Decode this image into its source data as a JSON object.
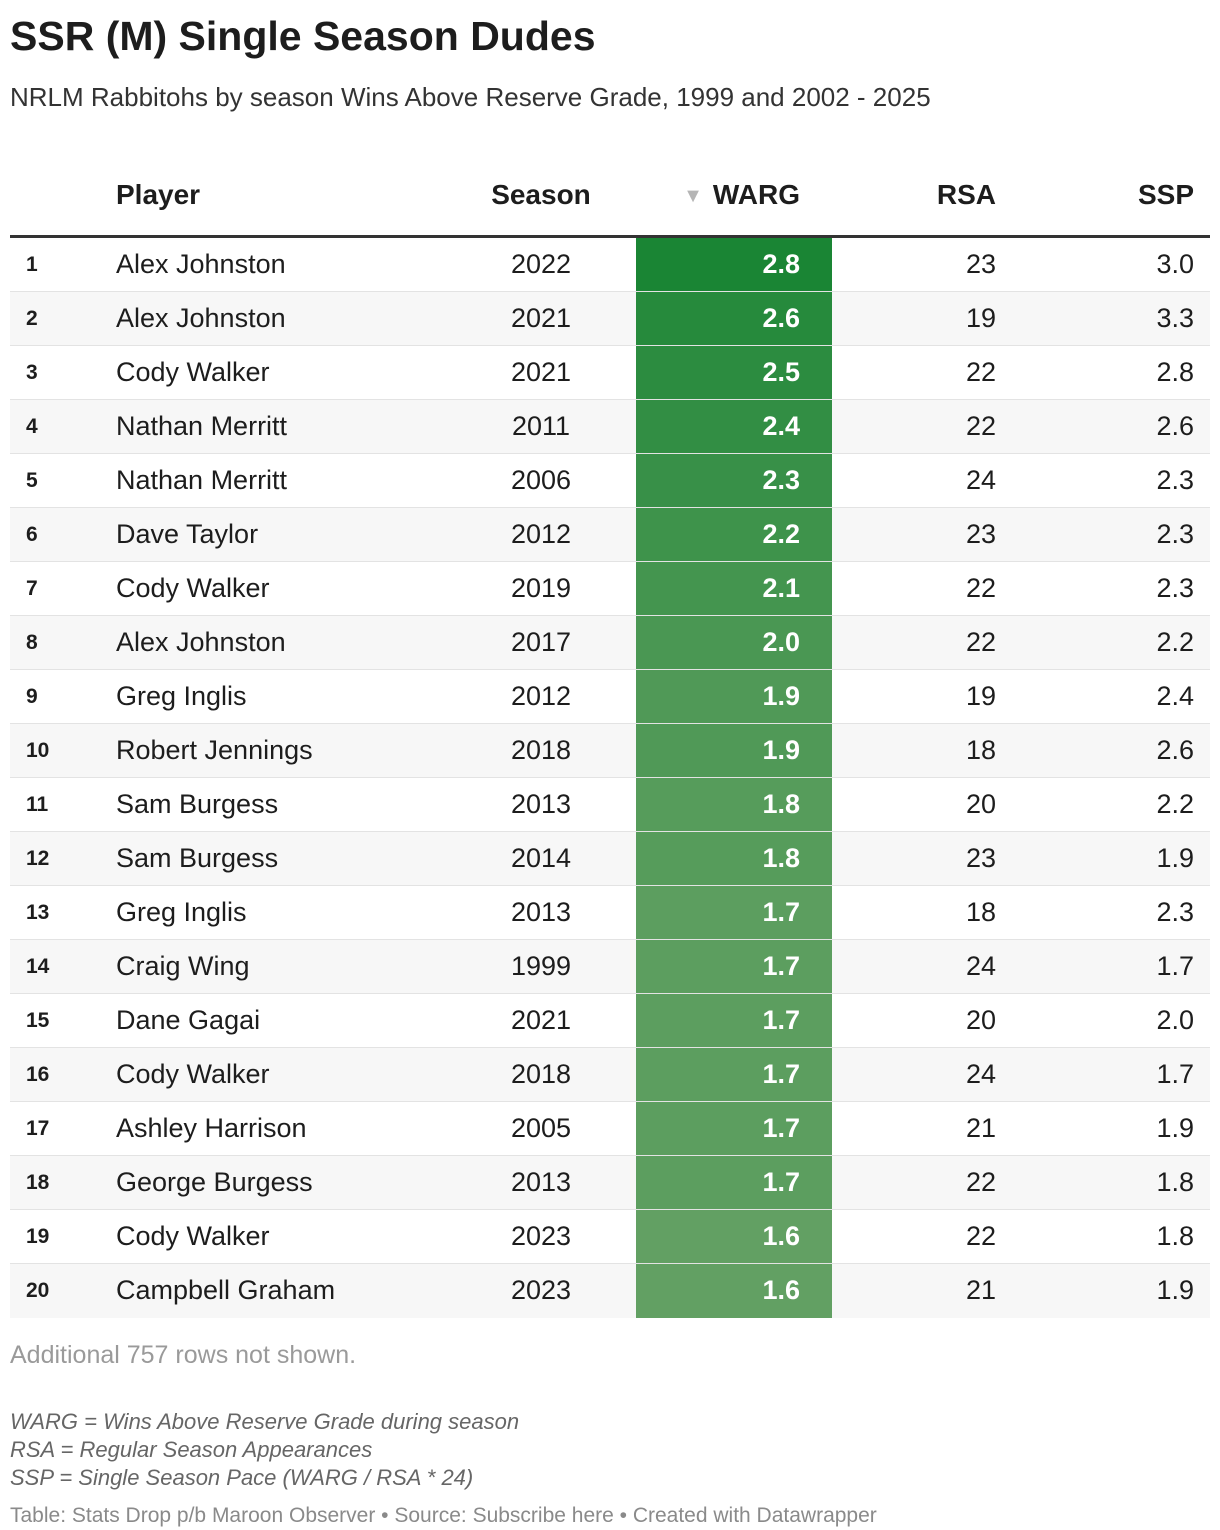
{
  "title": "SSR (M) Single Season Dudes",
  "subtitle": "NRLM Rabbitohs by season Wins Above Reserve Grade, 1999 and 2002 - 2025",
  "colors": {
    "warg_max": "#1a8534",
    "warg_min": "#62a063",
    "header_rule": "#333333"
  },
  "icons": {
    "sort": "sort-descending-triangle-icon"
  },
  "chart_data": {
    "type": "table",
    "columns": [
      "",
      "Player",
      "Season",
      "WARG",
      "RSA",
      "SSP"
    ],
    "sorted_by": "WARG",
    "rows": [
      {
        "rank": "1",
        "player": "Alex Johnston",
        "season": "2022",
        "warg": "2.8",
        "rsa": "23",
        "ssp": "3.0"
      },
      {
        "rank": "2",
        "player": "Alex Johnston",
        "season": "2021",
        "warg": "2.6",
        "rsa": "19",
        "ssp": "3.3"
      },
      {
        "rank": "3",
        "player": "Cody Walker",
        "season": "2021",
        "warg": "2.5",
        "rsa": "22",
        "ssp": "2.8"
      },
      {
        "rank": "4",
        "player": "Nathan Merritt",
        "season": "2011",
        "warg": "2.4",
        "rsa": "22",
        "ssp": "2.6"
      },
      {
        "rank": "5",
        "player": "Nathan Merritt",
        "season": "2006",
        "warg": "2.3",
        "rsa": "24",
        "ssp": "2.3"
      },
      {
        "rank": "6",
        "player": "Dave Taylor",
        "season": "2012",
        "warg": "2.2",
        "rsa": "23",
        "ssp": "2.3"
      },
      {
        "rank": "7",
        "player": "Cody Walker",
        "season": "2019",
        "warg": "2.1",
        "rsa": "22",
        "ssp": "2.3"
      },
      {
        "rank": "8",
        "player": "Alex Johnston",
        "season": "2017",
        "warg": "2.0",
        "rsa": "22",
        "ssp": "2.2"
      },
      {
        "rank": "9",
        "player": "Greg Inglis",
        "season": "2012",
        "warg": "1.9",
        "rsa": "19",
        "ssp": "2.4"
      },
      {
        "rank": "10",
        "player": "Robert Jennings",
        "season": "2018",
        "warg": "1.9",
        "rsa": "18",
        "ssp": "2.6"
      },
      {
        "rank": "11",
        "player": "Sam Burgess",
        "season": "2013",
        "warg": "1.8",
        "rsa": "20",
        "ssp": "2.2"
      },
      {
        "rank": "12",
        "player": "Sam Burgess",
        "season": "2014",
        "warg": "1.8",
        "rsa": "23",
        "ssp": "1.9"
      },
      {
        "rank": "13",
        "player": "Greg Inglis",
        "season": "2013",
        "warg": "1.7",
        "rsa": "18",
        "ssp": "2.3"
      },
      {
        "rank": "14",
        "player": "Craig Wing",
        "season": "1999",
        "warg": "1.7",
        "rsa": "24",
        "ssp": "1.7"
      },
      {
        "rank": "15",
        "player": "Dane Gagai",
        "season": "2021",
        "warg": "1.7",
        "rsa": "20",
        "ssp": "2.0"
      },
      {
        "rank": "16",
        "player": "Cody Walker",
        "season": "2018",
        "warg": "1.7",
        "rsa": "24",
        "ssp": "1.7"
      },
      {
        "rank": "17",
        "player": "Ashley Harrison",
        "season": "2005",
        "warg": "1.7",
        "rsa": "21",
        "ssp": "1.9"
      },
      {
        "rank": "18",
        "player": "George Burgess",
        "season": "2013",
        "warg": "1.7",
        "rsa": "22",
        "ssp": "1.8"
      },
      {
        "rank": "19",
        "player": "Cody Walker",
        "season": "2023",
        "warg": "1.6",
        "rsa": "22",
        "ssp": "1.8"
      },
      {
        "rank": "20",
        "player": "Campbell Graham",
        "season": "2023",
        "warg": "1.6",
        "rsa": "21",
        "ssp": "1.9"
      }
    ]
  },
  "rows_note": "Additional 757 rows not shown.",
  "notes": [
    "WARG = Wins Above Reserve Grade during season",
    "RSA = Regular Season Appearances",
    "SSP = Single Season Pace (WARG / RSA * 24)"
  ],
  "footer": "Table: Stats Drop p/b Maroon Observer • Source: Subscribe here • Created with Datawrapper"
}
